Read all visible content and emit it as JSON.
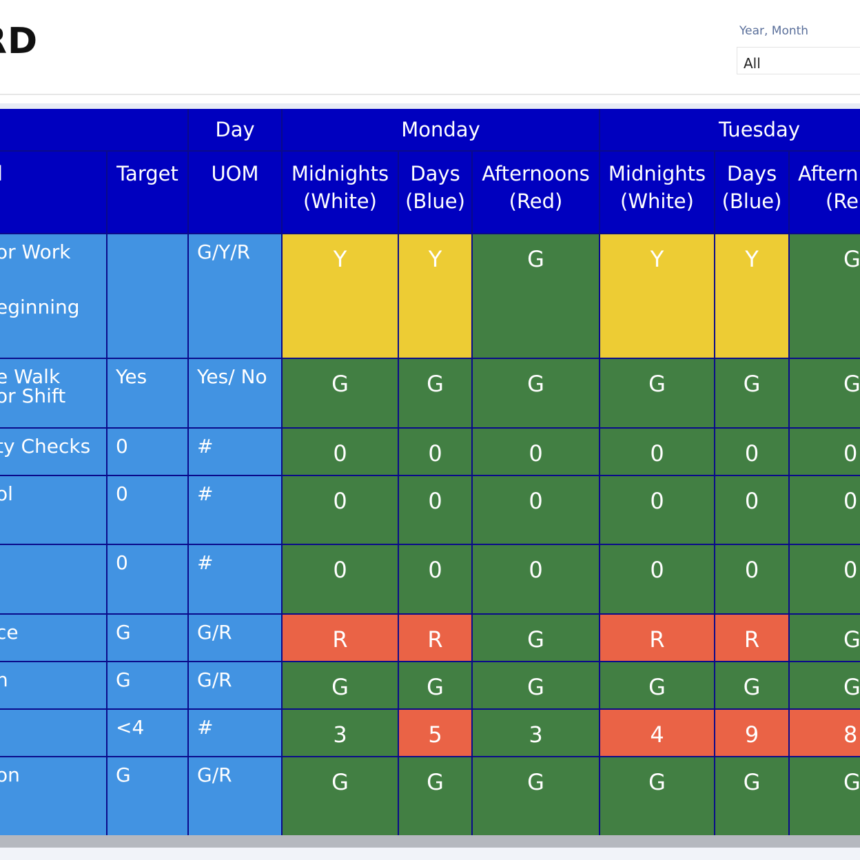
{
  "page": {
    "title": "RD"
  },
  "filter": {
    "label": "Year, Month",
    "value": "All"
  },
  "header": {
    "day_label": "Day",
    "target_label": "Target",
    "uom_label": "UOM",
    "first_col_fragment": "l",
    "days": [
      "Monday",
      "Tuesday"
    ],
    "shifts": [
      {
        "line1": "Midnights",
        "line2": "(White)"
      },
      {
        "line1": "Days",
        "line2": "(Blue)"
      },
      {
        "line1": "Afternoons",
        "line2": "(Red)"
      },
      {
        "line1": "Midnights",
        "line2": "(White)"
      },
      {
        "line1": "Days",
        "line2": "(Blue)"
      },
      {
        "line1": "Aftern",
        "line2": "(Re"
      }
    ]
  },
  "rows": [
    {
      "label_line1": "or Work",
      "label_line2": "eginning",
      "target": "",
      "uom": "G/Y/R",
      "values": [
        "Y",
        "Y",
        "G",
        "Y",
        "Y",
        "G"
      ],
      "status": [
        "Y",
        "Y",
        "G",
        "Y",
        "Y",
        "G"
      ]
    },
    {
      "label_line1": "e Walk",
      "label_line2": "or Shift",
      "target": "Yes",
      "uom": "Yes/ No",
      "values": [
        "G",
        "G",
        "G",
        "G",
        "G",
        "G"
      ],
      "status": [
        "G",
        "G",
        "G",
        "G",
        "G",
        "G"
      ]
    },
    {
      "label_line1": "ty Checks",
      "label_line2": "",
      "target": "0",
      "uom": "#",
      "values": [
        "0",
        "0",
        "0",
        "0",
        "0",
        "0"
      ],
      "status": [
        "G",
        "G",
        "G",
        "G",
        "G",
        "G"
      ]
    },
    {
      "label_line1": "ol",
      "label_line2": "",
      "target": "0",
      "uom": "#",
      "values": [
        "0",
        "0",
        "0",
        "0",
        "0",
        "0"
      ],
      "status": [
        "G",
        "G",
        "G",
        "G",
        "G",
        "G"
      ]
    },
    {
      "label_line1": "",
      "label_line2": "",
      "target": "0",
      "uom": "#",
      "values": [
        "0",
        "0",
        "0",
        "0",
        "0",
        "0"
      ],
      "status": [
        "G",
        "G",
        "G",
        "G",
        "G",
        "G"
      ]
    },
    {
      "label_line1": "ce",
      "label_line2": "",
      "target": "G",
      "uom": "G/R",
      "values": [
        "R",
        "R",
        "G",
        "R",
        "R",
        "G"
      ],
      "status": [
        "R",
        "R",
        "G",
        "R",
        "R",
        "G"
      ]
    },
    {
      "label_line1": "n",
      "label_line2": "",
      "target": "G",
      "uom": "G/R",
      "values": [
        "G",
        "G",
        "G",
        "G",
        "G",
        "G"
      ],
      "status": [
        "G",
        "G",
        "G",
        "G",
        "G",
        "G"
      ]
    },
    {
      "label_line1": "",
      "label_line2": "",
      "target": "<4",
      "uom": "#",
      "values": [
        "3",
        "5",
        "3",
        "4",
        "9",
        "8"
      ],
      "status": [
        "G",
        "R",
        "G",
        "R",
        "R",
        "R"
      ]
    },
    {
      "label_line1": "on",
      "label_line2": "",
      "target": "G",
      "uom": "G/R",
      "values": [
        "G",
        "G",
        "G",
        "G",
        "G",
        "G"
      ],
      "status": [
        "G",
        "G",
        "G",
        "G",
        "G",
        "G"
      ]
    }
  ],
  "colors": {
    "header_bg": "#0000bf",
    "label_bg": "#4293e2",
    "green": "#427f43",
    "yellow": "#edcc34",
    "red": "#ea6346"
  }
}
